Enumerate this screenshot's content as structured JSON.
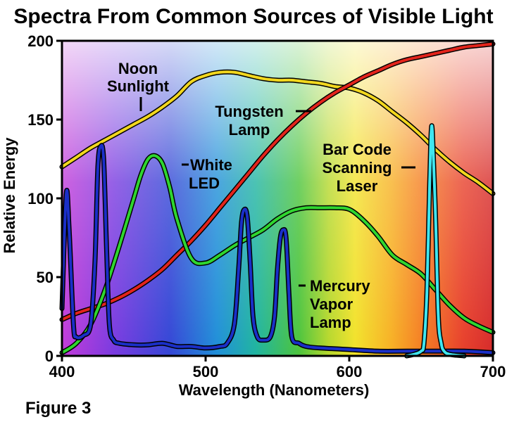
{
  "chart_data": {
    "type": "line",
    "title": "Spectra From Common Sources of Visible Light",
    "xlabel": "Wavelength (Nanometers)",
    "ylabel": "Relative Energy",
    "xlim": [
      400,
      700
    ],
    "ylim": [
      0,
      200
    ],
    "x_ticks": [
      400,
      500,
      600,
      700
    ],
    "y_ticks": [
      0,
      50,
      100,
      150,
      200
    ],
    "grid": false,
    "legend": "none",
    "background": "visible-spectrum-gradient",
    "series": [
      {
        "name": "Noon Sunlight",
        "color": "#f2d71e",
        "x": [
          400,
          410,
          420,
          430,
          440,
          450,
          460,
          470,
          480,
          490,
          500,
          510,
          520,
          530,
          540,
          550,
          560,
          570,
          580,
          590,
          600,
          610,
          620,
          630,
          640,
          650,
          660,
          670,
          680,
          690,
          700
        ],
        "y": [
          120,
          126,
          132,
          137,
          142,
          147,
          152,
          158,
          165,
          174,
          178,
          180,
          180,
          178,
          176,
          175,
          175,
          174,
          173,
          171,
          170,
          167,
          162,
          155,
          148,
          140,
          131,
          123,
          116,
          110,
          103
        ]
      },
      {
        "name": "Tungsten Lamp",
        "color": "#e3241b",
        "x": [
          400,
          410,
          420,
          430,
          440,
          450,
          460,
          470,
          480,
          490,
          500,
          510,
          520,
          530,
          540,
          550,
          560,
          570,
          580,
          590,
          600,
          610,
          620,
          630,
          640,
          650,
          660,
          670,
          680,
          690,
          700
        ],
        "y": [
          23,
          27,
          30,
          33,
          37,
          42,
          48,
          55,
          64,
          73,
          83,
          94,
          105,
          116,
          127,
          137,
          146,
          154,
          161,
          167,
          172,
          177,
          181,
          185,
          188,
          190,
          192,
          194,
          196,
          197,
          198
        ]
      },
      {
        "name": "White LED",
        "color": "#2fd62f",
        "x": [
          400,
          410,
          420,
          430,
          440,
          450,
          455,
          460,
          465,
          470,
          475,
          480,
          490,
          500,
          510,
          520,
          530,
          540,
          550,
          560,
          570,
          580,
          590,
          600,
          610,
          620,
          630,
          640,
          650,
          660,
          670,
          680,
          690,
          700
        ],
        "y": [
          2,
          8,
          20,
          42,
          70,
          100,
          115,
          125,
          127,
          122,
          107,
          87,
          62,
          59,
          64,
          70,
          75,
          80,
          87,
          92,
          94,
          94,
          94,
          93,
          86,
          76,
          64,
          58,
          52,
          42,
          32,
          24,
          19,
          15
        ]
      },
      {
        "name": "Mercury Vapor Lamp",
        "color": "#1a2fc8",
        "x": [
          400,
          403,
          405,
          408,
          410,
          415,
          420,
          423,
          425,
          427,
          429,
          431,
          433,
          436,
          440,
          450,
          460,
          470,
          480,
          490,
          500,
          510,
          515,
          520,
          523,
          525,
          527,
          529,
          531,
          533,
          536,
          540,
          545,
          548,
          550,
          552,
          554,
          556,
          558,
          560,
          565,
          570,
          580,
          600,
          620,
          640,
          660,
          680,
          700
        ],
        "y": [
          30,
          103,
          80,
          20,
          12,
          13,
          20,
          60,
          120,
          133,
          125,
          70,
          20,
          10,
          8,
          7,
          7,
          8,
          6,
          6,
          5,
          6,
          8,
          20,
          55,
          85,
          93,
          88,
          60,
          25,
          12,
          10,
          12,
          25,
          55,
          75,
          80,
          75,
          40,
          12,
          8,
          6,
          5,
          4,
          3,
          3,
          3,
          3,
          2
        ]
      },
      {
        "name": "Bar Code Scanning Laser",
        "color": "#3fe6f0",
        "x": [
          640,
          645,
          650,
          652,
          654,
          656,
          657,
          658,
          660,
          662,
          664,
          666,
          670,
          680
        ],
        "y": [
          0,
          1,
          3,
          8,
          40,
          110,
          142,
          140,
          90,
          25,
          8,
          3,
          1,
          0
        ]
      }
    ]
  },
  "annotations": {
    "sunlight": [
      "Noon",
      "Sunlight"
    ],
    "tungsten": [
      "Tungsten",
      "Lamp"
    ],
    "led": [
      "White",
      "LED"
    ],
    "laser": [
      "Bar Code",
      "Scanning",
      "Laser"
    ],
    "mercury": [
      "Mercury",
      "Vapor",
      "Lamp"
    ]
  },
  "figure_label": "Figure 3"
}
